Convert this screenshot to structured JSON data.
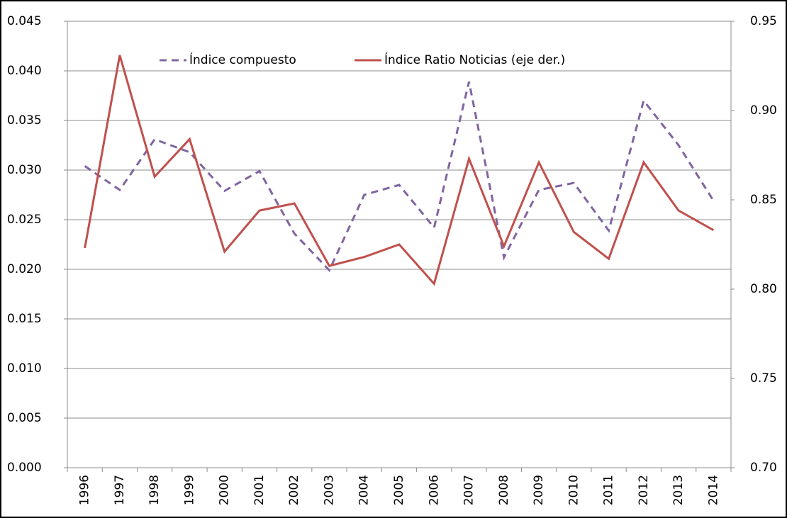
{
  "chart_data": {
    "type": "line",
    "categories": [
      "1996",
      "1997",
      "1998",
      "1999",
      "2000",
      "2001",
      "2002",
      "2003",
      "2004",
      "2005",
      "2006",
      "2007",
      "2008",
      "2009",
      "2010",
      "2011",
      "2012",
      "2013",
      "2014"
    ],
    "series": [
      {
        "name": "Índice compuesto",
        "color": "#8064a2",
        "dashed": true,
        "values": [
          0.0304,
          0.028,
          0.0331,
          0.0318,
          0.0279,
          0.0299,
          0.0236,
          0.0199,
          0.0275,
          0.0285,
          0.0242,
          0.0389,
          0.0212,
          0.028,
          0.0287,
          0.0239,
          0.037,
          0.0325,
          0.0269
        ]
      },
      {
        "name": "Índice Ratio Noticias (eje der.)",
        "color": "#c0504d",
        "axis": "y2",
        "values": [
          0.823,
          0.931,
          0.863,
          0.884,
          0.821,
          0.844,
          0.848,
          0.813,
          0.818,
          0.825,
          0.803,
          0.873,
          0.824,
          0.871,
          0.832,
          0.817,
          0.871,
          0.844,
          0.833
        ]
      }
    ],
    "ylim": [
      0,
      0.045
    ],
    "yticks": [
      {
        "value": 0,
        "label": "0.000"
      },
      {
        "value": 0.005,
        "label": "0.005"
      },
      {
        "value": 0.01,
        "label": "0.010"
      },
      {
        "value": 0.015,
        "label": "0.015"
      },
      {
        "value": 0.02,
        "label": "0.020"
      },
      {
        "value": 0.025,
        "label": "0.025"
      },
      {
        "value": 0.03,
        "label": "0.030"
      },
      {
        "value": 0.035,
        "label": "0.035"
      },
      {
        "value": 0.04,
        "label": "0.040"
      },
      {
        "value": 0.045,
        "label": "0.045"
      }
    ],
    "y2lim": [
      0.7,
      0.95
    ],
    "y2ticks": [
      {
        "value": 0.7,
        "label": "0.70"
      },
      {
        "value": 0.75,
        "label": "0.75"
      },
      {
        "value": 0.8,
        "label": "0.80"
      },
      {
        "value": 0.85,
        "label": "0.85"
      },
      {
        "value": 0.9,
        "label": "0.90"
      },
      {
        "value": 0.95,
        "label": "0.95"
      }
    ],
    "grid": true
  }
}
